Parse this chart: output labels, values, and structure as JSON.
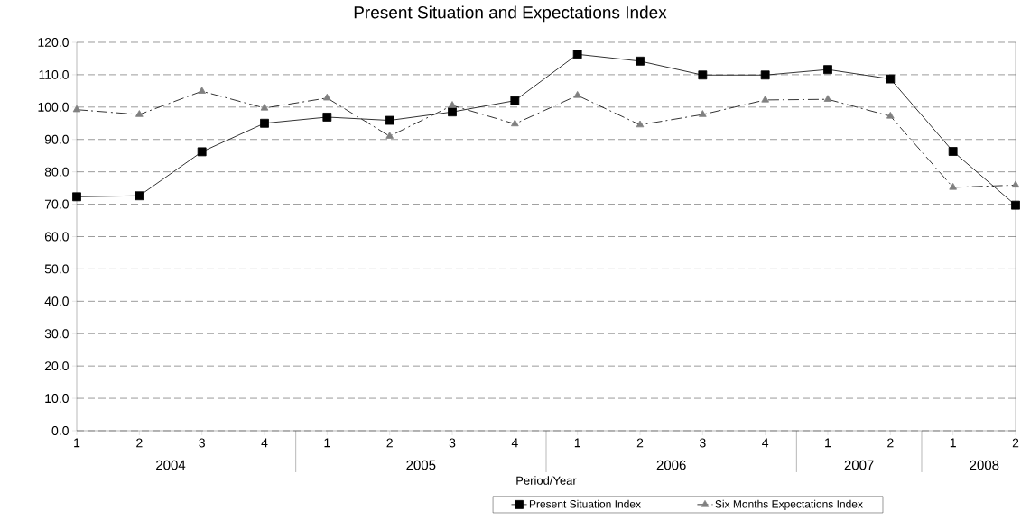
{
  "chart_data": {
    "type": "line",
    "title": "Present Situation and Expectations Index",
    "xlabel": "Period/Year",
    "categories": [
      "1",
      "2",
      "3",
      "4",
      "1",
      "2",
      "3",
      "4",
      "1",
      "2",
      "3",
      "4",
      "1",
      "2",
      "1",
      "2"
    ],
    "series": [
      {
        "name": "Present Situation Index",
        "color": "#000000",
        "marker": "square",
        "line_style": "solid",
        "values": [
          72.3,
          72.6,
          86.2,
          95.0,
          96.9,
          95.9,
          98.5,
          102.0,
          116.3,
          114.2,
          109.9,
          109.9,
          111.6,
          108.7,
          86.3,
          69.7
        ]
      },
      {
        "name": "Six Months Expectations Index",
        "color": "#808080",
        "marker": "triangle",
        "line_style": "dashed",
        "values": [
          99.2,
          97.7,
          104.9,
          99.7,
          102.8,
          91.0,
          100.5,
          94.8,
          103.6,
          94.5,
          97.7,
          102.2,
          102.4,
          97.2,
          75.2,
          75.9
        ]
      }
    ],
    "annotations": [
      "2004",
      "2005",
      "2006",
      "2007",
      "2008"
    ],
    "ylim": [
      0,
      120
    ],
    "yticks": [
      {
        "value": 0,
        "label": "0.0"
      },
      {
        "value": 10,
        "label": "10.0"
      },
      {
        "value": 20,
        "label": "20.0"
      },
      {
        "value": 30,
        "label": "30.0"
      },
      {
        "value": 40,
        "label": "40.0"
      },
      {
        "value": 50,
        "label": "50.0"
      },
      {
        "value": 60,
        "label": "60.0"
      },
      {
        "value": 70,
        "label": "70.0"
      },
      {
        "value": 80,
        "label": "80.0"
      },
      {
        "value": 90,
        "label": "90.0"
      },
      {
        "value": 100,
        "label": "100.0"
      },
      {
        "value": 110,
        "label": "110.0"
      },
      {
        "value": 120,
        "label": "120.0"
      }
    ],
    "grid": "y",
    "legend": "bottom"
  }
}
